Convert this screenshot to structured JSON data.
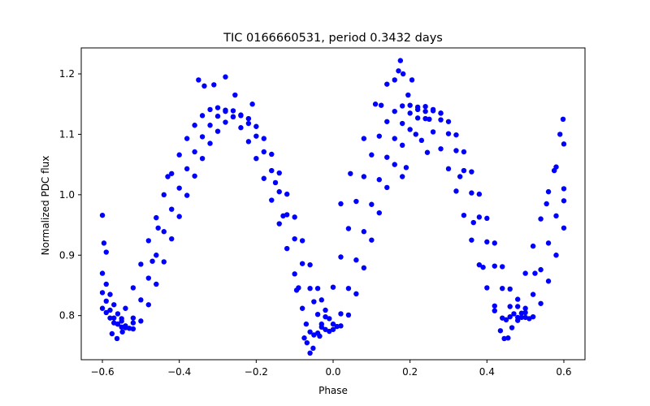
{
  "chart_data": {
    "type": "scatter",
    "title": "TIC 0166660531, period 0.3432 days",
    "xlabel": "Phase",
    "ylabel": "Normalized PDC flux",
    "xlim": [
      -0.655,
      0.655
    ],
    "ylim": [
      0.727,
      1.243
    ],
    "xticks": [
      -0.6,
      -0.4,
      -0.2,
      0.0,
      0.2,
      0.4,
      0.6
    ],
    "xtick_labels": [
      "−0.6",
      "−0.4",
      "−0.2",
      "0.0",
      "0.2",
      "0.4",
      "0.6"
    ],
    "yticks": [
      0.8,
      0.9,
      1.0,
      1.1,
      1.2
    ],
    "ytick_labels": [
      "0.8",
      "0.9",
      "1.0",
      "1.1",
      "1.2"
    ],
    "grid": false,
    "legend": "none",
    "marker_color": "#0000ff",
    "series": [
      {
        "points": [
          [
            -0.6,
            0.812
          ],
          [
            -0.59,
            0.805
          ],
          [
            -0.58,
            0.796
          ],
          [
            -0.57,
            0.788
          ],
          [
            -0.56,
            0.786
          ],
          [
            -0.55,
            0.795
          ],
          [
            -0.54,
            0.812
          ],
          [
            -0.52,
            0.846
          ],
          [
            -0.5,
            0.885
          ],
          [
            -0.48,
            0.924
          ],
          [
            -0.46,
            0.962
          ],
          [
            -0.44,
            1.0
          ],
          [
            -0.42,
            1.035
          ],
          [
            -0.4,
            1.066
          ],
          [
            -0.38,
            1.093
          ],
          [
            -0.36,
            1.115
          ],
          [
            -0.34,
            1.131
          ],
          [
            -0.32,
            1.141
          ],
          [
            -0.3,
            1.144
          ],
          [
            -0.28,
            1.14
          ],
          [
            -0.26,
            1.129
          ],
          [
            -0.24,
            1.111
          ],
          [
            -0.22,
            1.088
          ],
          [
            -0.2,
            1.06
          ],
          [
            -0.18,
            1.027
          ],
          [
            -0.16,
            0.991
          ],
          [
            -0.14,
            0.952
          ],
          [
            -0.12,
            0.911
          ],
          [
            -0.1,
            0.869
          ],
          [
            -0.09,
            0.846
          ],
          [
            -0.08,
            0.812
          ],
          [
            -0.07,
            0.786
          ],
          [
            -0.06,
            0.773
          ],
          [
            -0.05,
            0.768
          ],
          [
            -0.04,
            0.771
          ],
          [
            -0.03,
            0.781
          ],
          [
            -0.02,
            0.798
          ],
          [
            0.0,
            0.847
          ],
          [
            0.02,
            0.897
          ],
          [
            0.04,
            0.944
          ],
          [
            0.06,
            0.989
          ],
          [
            0.08,
            1.03
          ],
          [
            0.1,
            1.066
          ],
          [
            0.12,
            1.097
          ],
          [
            0.14,
            1.121
          ],
          [
            0.16,
            1.138
          ],
          [
            0.18,
            1.147
          ],
          [
            0.2,
            1.148
          ],
          [
            0.22,
            1.141
          ],
          [
            0.24,
            1.126
          ],
          [
            0.26,
            1.104
          ],
          [
            0.28,
            1.076
          ],
          [
            0.3,
            1.043
          ],
          [
            0.32,
            1.006
          ],
          [
            0.34,
            0.966
          ],
          [
            0.36,
            0.925
          ],
          [
            0.38,
            0.884
          ],
          [
            0.4,
            0.846
          ],
          [
            0.42,
            0.816
          ],
          [
            0.44,
            0.796
          ],
          [
            0.45,
            0.793
          ],
          [
            0.46,
            0.798
          ],
          [
            0.48,
            0.827
          ],
          [
            0.5,
            0.87
          ],
          [
            0.52,
            0.915
          ],
          [
            0.54,
            0.96
          ],
          [
            0.56,
            1.005
          ],
          [
            0.58,
            1.046
          ],
          [
            0.6,
            1.084
          ]
        ]
      },
      {
        "points": [
          [
            -0.6,
            0.838
          ],
          [
            -0.59,
            0.824
          ],
          [
            -0.58,
            0.809
          ],
          [
            -0.57,
            0.796
          ],
          [
            -0.56,
            0.786
          ],
          [
            -0.55,
            0.781
          ],
          [
            -0.54,
            0.78
          ],
          [
            -0.52,
            0.796
          ],
          [
            -0.5,
            0.826
          ],
          [
            -0.48,
            0.862
          ],
          [
            -0.46,
            0.9
          ],
          [
            -0.44,
            0.939
          ],
          [
            -0.42,
            0.976
          ],
          [
            -0.4,
            1.011
          ],
          [
            -0.38,
            1.043
          ],
          [
            -0.36,
            1.071
          ],
          [
            -0.34,
            1.096
          ],
          [
            -0.32,
            1.115
          ],
          [
            -0.3,
            1.13
          ],
          [
            -0.28,
            1.138
          ],
          [
            -0.26,
            1.139
          ],
          [
            -0.24,
            1.132
          ],
          [
            -0.22,
            1.118
          ],
          [
            -0.2,
            1.097
          ],
          [
            -0.18,
            1.071
          ],
          [
            -0.16,
            1.04
          ],
          [
            -0.14,
            1.005
          ],
          [
            -0.12,
            0.967
          ],
          [
            -0.1,
            0.927
          ],
          [
            -0.08,
            0.886
          ],
          [
            -0.06,
            0.845
          ],
          [
            -0.05,
            0.823
          ],
          [
            -0.04,
            0.802
          ],
          [
            -0.03,
            0.786
          ],
          [
            -0.02,
            0.777
          ],
          [
            -0.01,
            0.774
          ],
          [
            0.0,
            0.777
          ],
          [
            0.02,
            0.803
          ],
          [
            0.04,
            0.845
          ],
          [
            0.06,
            0.892
          ],
          [
            0.08,
            0.939
          ],
          [
            0.1,
            0.984
          ],
          [
            0.12,
            1.025
          ],
          [
            0.14,
            1.062
          ],
          [
            0.16,
            1.093
          ],
          [
            0.18,
            1.118
          ],
          [
            0.2,
            1.135
          ],
          [
            0.22,
            1.145
          ],
          [
            0.24,
            1.146
          ],
          [
            0.26,
            1.139
          ],
          [
            0.28,
            1.124
          ],
          [
            0.3,
            1.101
          ],
          [
            0.32,
            1.073
          ],
          [
            0.34,
            1.04
          ],
          [
            0.36,
            1.003
          ],
          [
            0.38,
            0.963
          ],
          [
            0.4,
            0.922
          ],
          [
            0.42,
            0.882
          ],
          [
            0.44,
            0.845
          ],
          [
            0.46,
            0.815
          ],
          [
            0.47,
            0.803
          ],
          [
            0.48,
            0.797
          ],
          [
            0.49,
            0.797
          ],
          [
            0.5,
            0.805
          ],
          [
            0.52,
            0.835
          ],
          [
            0.54,
            0.876
          ],
          [
            0.56,
            0.92
          ],
          [
            0.58,
            0.965
          ],
          [
            0.6,
            1.01
          ]
        ]
      },
      {
        "points": [
          [
            -0.6,
            0.87
          ],
          [
            -0.59,
            0.852
          ],
          [
            -0.58,
            0.835
          ],
          [
            -0.57,
            0.818
          ],
          [
            -0.56,
            0.803
          ],
          [
            -0.55,
            0.791
          ],
          [
            -0.54,
            0.783
          ],
          [
            -0.53,
            0.779
          ],
          [
            -0.52,
            0.778
          ],
          [
            -0.5,
            0.791
          ],
          [
            -0.48,
            0.818
          ],
          [
            -0.46,
            0.852
          ],
          [
            -0.44,
            0.889
          ],
          [
            -0.42,
            0.927
          ],
          [
            -0.4,
            0.964
          ],
          [
            -0.38,
            0.999
          ],
          [
            -0.36,
            1.031
          ],
          [
            -0.34,
            1.06
          ],
          [
            -0.32,
            1.085
          ],
          [
            -0.3,
            1.105
          ],
          [
            -0.28,
            1.12
          ],
          [
            -0.26,
            1.129
          ],
          [
            -0.24,
            1.131
          ],
          [
            -0.22,
            1.126
          ],
          [
            -0.2,
            1.113
          ],
          [
            -0.18,
            1.093
          ],
          [
            -0.16,
            1.067
          ],
          [
            -0.14,
            1.036
          ],
          [
            -0.12,
            1.001
          ],
          [
            -0.1,
            0.963
          ],
          [
            -0.08,
            0.924
          ],
          [
            -0.06,
            0.884
          ],
          [
            -0.04,
            0.845
          ],
          [
            -0.03,
            0.826
          ],
          [
            -0.02,
            0.809
          ],
          [
            -0.01,
            0.795
          ],
          [
            0.0,
            0.786
          ],
          [
            0.01,
            0.782
          ],
          [
            0.02,
            0.783
          ],
          [
            0.04,
            0.801
          ],
          [
            0.06,
            0.836
          ],
          [
            0.08,
            0.879
          ],
          [
            0.1,
            0.925
          ],
          [
            0.12,
            0.97
          ],
          [
            0.14,
            1.012
          ],
          [
            0.16,
            1.05
          ],
          [
            0.18,
            1.082
          ],
          [
            0.2,
            1.108
          ],
          [
            0.22,
            1.127
          ],
          [
            0.24,
            1.138
          ],
          [
            0.26,
            1.141
          ],
          [
            0.28,
            1.135
          ],
          [
            0.3,
            1.121
          ],
          [
            0.32,
            1.099
          ],
          [
            0.34,
            1.071
          ],
          [
            0.36,
            1.038
          ],
          [
            0.38,
            1.001
          ],
          [
            0.4,
            0.961
          ],
          [
            0.42,
            0.92
          ],
          [
            0.44,
            0.881
          ],
          [
            0.46,
            0.844
          ],
          [
            0.48,
            0.815
          ],
          [
            0.49,
            0.804
          ],
          [
            0.5,
            0.797
          ],
          [
            0.51,
            0.795
          ],
          [
            0.52,
            0.798
          ],
          [
            0.54,
            0.82
          ],
          [
            0.56,
            0.857
          ],
          [
            0.58,
            0.9
          ],
          [
            0.6,
            0.945
          ]
        ]
      },
      {
        "points": [
          [
            -0.6,
            0.966
          ],
          [
            -0.596,
            0.92
          ],
          [
            -0.59,
            0.905
          ],
          [
            -0.575,
            0.77
          ],
          [
            -0.562,
            0.762
          ],
          [
            -0.548,
            0.773
          ],
          [
            -0.52,
            0.788
          ],
          [
            -0.47,
            0.89
          ],
          [
            -0.455,
            0.945
          ],
          [
            -0.43,
            1.03
          ],
          [
            -0.35,
            1.19
          ],
          [
            -0.335,
            1.18
          ],
          [
            -0.31,
            1.182
          ],
          [
            -0.28,
            1.195
          ],
          [
            -0.255,
            1.165
          ],
          [
            -0.21,
            1.15
          ],
          [
            -0.15,
            1.02
          ],
          [
            -0.13,
            0.965
          ],
          [
            -0.095,
            0.842
          ],
          [
            -0.075,
            0.763
          ],
          [
            -0.068,
            0.755
          ],
          [
            -0.06,
            0.738
          ],
          [
            -0.052,
            0.746
          ],
          [
            -0.035,
            0.766
          ],
          [
            0.02,
            0.985
          ],
          [
            0.045,
            1.035
          ],
          [
            0.08,
            1.093
          ],
          [
            0.11,
            1.15
          ],
          [
            0.125,
            1.148
          ],
          [
            0.14,
            1.183
          ],
          [
            0.16,
            1.19
          ],
          [
            0.17,
            1.205
          ],
          [
            0.175,
            1.222
          ],
          [
            0.182,
            1.2
          ],
          [
            0.195,
            1.165
          ],
          [
            0.205,
            1.19
          ],
          [
            0.215,
            1.1
          ],
          [
            0.23,
            1.09
          ],
          [
            0.245,
            1.07
          ],
          [
            0.19,
            1.045
          ],
          [
            0.18,
            1.03
          ],
          [
            0.25,
            1.125
          ],
          [
            0.28,
            1.135
          ],
          [
            0.33,
            1.03
          ],
          [
            0.365,
            0.954
          ],
          [
            0.39,
            0.88
          ],
          [
            0.42,
            0.808
          ],
          [
            0.435,
            0.775
          ],
          [
            0.445,
            0.762
          ],
          [
            0.455,
            0.763
          ],
          [
            0.465,
            0.78
          ],
          [
            0.48,
            0.792
          ],
          [
            0.5,
            0.812
          ],
          [
            0.525,
            0.87
          ],
          [
            0.555,
            0.985
          ],
          [
            0.575,
            1.04
          ],
          [
            0.59,
            1.1
          ],
          [
            0.598,
            1.125
          ],
          [
            0.6,
            0.99
          ]
        ]
      }
    ]
  }
}
